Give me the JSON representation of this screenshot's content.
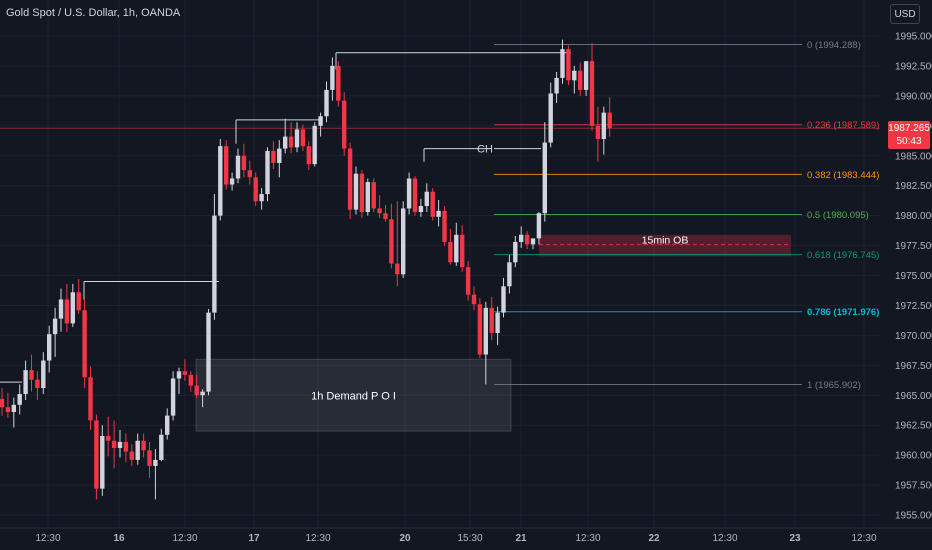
{
  "header": {
    "title": "Gold Spot / U.S. Dollar, 1h, OANDA",
    "currency_button": "USD"
  },
  "price_tag": {
    "price": "1987.265",
    "countdown": "50:43"
  },
  "colors": {
    "background": "#131722",
    "up": "#d1d4dc",
    "down": "#f23645",
    "fib_red": "#f23645",
    "fib_orange": "#ff9800",
    "fib_green": "#4caf50",
    "fib_teal": "#089981",
    "fib_blue": "#00bcd4",
    "fib_gray": "#787b86"
  },
  "chart_data": {
    "type": "candlestick",
    "y_axis": {
      "range": [
        1954,
        1997.3
      ],
      "ticks": [
        "1955.000",
        "1957.500",
        "1960.000",
        "1962.500",
        "1965.000",
        "1967.500",
        "1970.000",
        "1972.500",
        "1975.000",
        "1977.500",
        "1980.000",
        "1982.500",
        "1985.000",
        "1987.500",
        "1990.000",
        "1992.500",
        "1995.000"
      ]
    },
    "x_axis": {
      "ticks": [
        "12:30",
        "16",
        "12:30",
        "17",
        "12:30",
        "20",
        "15:30",
        "21",
        "12:30",
        "22",
        "12:30",
        "23",
        "12:30"
      ]
    },
    "candles_ohlc": [
      [
        1964.7,
        1965.6,
        1963.3,
        1964.0
      ],
      [
        1964.0,
        1965.2,
        1963.1,
        1963.6
      ],
      [
        1963.6,
        1964.8,
        1962.3,
        1964.2
      ],
      [
        1964.2,
        1965.9,
        1963.4,
        1965.1
      ],
      [
        1965.1,
        1967.9,
        1964.6,
        1967.1
      ],
      [
        1967.1,
        1968.4,
        1965.3,
        1966.3
      ],
      [
        1966.3,
        1967.0,
        1964.6,
        1965.6
      ],
      [
        1965.6,
        1968.6,
        1965.1,
        1967.9
      ],
      [
        1967.9,
        1970.8,
        1966.9,
        1970.1
      ],
      [
        1970.1,
        1972.3,
        1968.2,
        1971.4
      ],
      [
        1971.4,
        1973.9,
        1970.3,
        1973.0
      ],
      [
        1973.0,
        1974.3,
        1970.3,
        1971.0
      ],
      [
        1971.0,
        1974.3,
        1970.7,
        1973.6
      ],
      [
        1973.6,
        1974.7,
        1971.8,
        1972.1
      ],
      [
        1972.1,
        1973.0,
        1965.6,
        1966.5
      ],
      [
        1966.5,
        1967.4,
        1962.1,
        1962.9
      ],
      [
        1962.9,
        1963.4,
        1956.3,
        1957.2
      ],
      [
        1957.2,
        1962.5,
        1956.6,
        1961.6
      ],
      [
        1961.6,
        1963.2,
        1959.9,
        1961.2
      ],
      [
        1961.2,
        1962.9,
        1958.9,
        1960.6
      ],
      [
        1960.6,
        1962.1,
        1959.8,
        1961.1
      ],
      [
        1961.1,
        1961.8,
        1959.4,
        1960.3
      ],
      [
        1960.3,
        1960.9,
        1959.1,
        1959.6
      ],
      [
        1959.6,
        1961.8,
        1959.2,
        1961.2
      ],
      [
        1961.2,
        1961.8,
        1959.8,
        1960.4
      ],
      [
        1960.4,
        1961.1,
        1958.1,
        1959.1
      ],
      [
        1959.1,
        1960.5,
        1956.3,
        1959.6
      ],
      [
        1959.6,
        1962.2,
        1959.5,
        1961.7
      ],
      [
        1961.7,
        1963.9,
        1961.3,
        1963.3
      ],
      [
        1963.3,
        1967.0,
        1962.9,
        1966.4
      ],
      [
        1966.4,
        1967.3,
        1965.1,
        1967.0
      ],
      [
        1967.0,
        1968.0,
        1966.2,
        1966.7
      ],
      [
        1966.7,
        1967.0,
        1965.3,
        1965.8
      ],
      [
        1965.8,
        1966.7,
        1964.8,
        1965.0
      ],
      [
        1965.0,
        1965.5,
        1964.0,
        1965.3
      ],
      [
        1965.3,
        1972.2,
        1965.0,
        1971.9
      ],
      [
        1971.9,
        1981.8,
        1971.3,
        1980.0
      ],
      [
        1980.0,
        1986.4,
        1979.6,
        1985.8
      ],
      [
        1985.8,
        1986.3,
        1982.2,
        1982.6
      ],
      [
        1982.6,
        1983.6,
        1982.1,
        1983.1
      ],
      [
        1983.1,
        1985.6,
        1982.7,
        1985.0
      ],
      [
        1985.0,
        1986.0,
        1983.2,
        1983.8
      ],
      [
        1983.8,
        1984.6,
        1982.6,
        1983.2
      ],
      [
        1983.2,
        1983.6,
        1980.8,
        1981.2
      ],
      [
        1981.2,
        1982.3,
        1980.5,
        1981.8
      ],
      [
        1981.8,
        1985.7,
        1981.2,
        1985.4
      ],
      [
        1985.4,
        1986.2,
        1983.9,
        1984.4
      ],
      [
        1984.4,
        1986.3,
        1983.2,
        1985.6
      ],
      [
        1985.6,
        1988.1,
        1985.2,
        1986.6
      ],
      [
        1986.6,
        1987.8,
        1985.2,
        1985.7
      ],
      [
        1985.7,
        1987.8,
        1985.3,
        1987.2
      ],
      [
        1987.2,
        1987.6,
        1985.4,
        1985.8
      ],
      [
        1985.8,
        1986.2,
        1983.8,
        1984.3
      ],
      [
        1984.3,
        1987.8,
        1984.1,
        1987.5
      ],
      [
        1987.5,
        1988.6,
        1986.6,
        1988.3
      ],
      [
        1988.3,
        1991.2,
        1987.8,
        1990.5
      ],
      [
        1990.5,
        1993.2,
        1989.6,
        1992.5
      ],
      [
        1992.5,
        1992.9,
        1989.1,
        1989.6
      ],
      [
        1989.6,
        1990.3,
        1985.0,
        1985.6
      ],
      [
        1985.6,
        1986.1,
        1979.7,
        1980.5
      ],
      [
        1980.5,
        1984.1,
        1980.1,
        1983.5
      ],
      [
        1983.5,
        1983.8,
        1979.8,
        1980.3
      ],
      [
        1980.3,
        1983.1,
        1980.0,
        1982.8
      ],
      [
        1982.8,
        1983.1,
        1980.3,
        1980.6
      ],
      [
        1980.6,
        1981.7,
        1979.8,
        1980.2
      ],
      [
        1980.2,
        1980.9,
        1979.5,
        1979.7
      ],
      [
        1979.7,
        1981.0,
        1975.6,
        1976.0
      ],
      [
        1976.0,
        1981.2,
        1974.1,
        1975.1
      ],
      [
        1975.1,
        1981.2,
        1974.8,
        1980.6
      ],
      [
        1980.6,
        1983.6,
        1980.1,
        1983.1
      ],
      [
        1983.1,
        1983.3,
        1980.0,
        1980.3
      ],
      [
        1980.3,
        1981.4,
        1979.9,
        1980.8
      ],
      [
        1980.8,
        1982.7,
        1980.3,
        1982.0
      ],
      [
        1982.0,
        1982.3,
        1979.6,
        1979.9
      ],
      [
        1979.9,
        1981.3,
        1979.1,
        1980.4
      ],
      [
        1980.4,
        1980.8,
        1977.5,
        1977.8
      ],
      [
        1977.8,
        1978.9,
        1975.9,
        1976.1
      ],
      [
        1976.1,
        1979.4,
        1975.8,
        1978.4
      ],
      [
        1978.4,
        1979.2,
        1975.3,
        1975.7
      ],
      [
        1975.7,
        1976.2,
        1972.9,
        1973.4
      ],
      [
        1973.4,
        1974.1,
        1972.1,
        1972.6
      ],
      [
        1972.6,
        1973.1,
        1968.1,
        1968.4
      ],
      [
        1968.4,
        1972.8,
        1965.9,
        1972.3
      ],
      [
        1972.3,
        1973.2,
        1969.6,
        1970.2
      ],
      [
        1970.2,
        1972.4,
        1969.2,
        1971.9
      ],
      [
        1971.9,
        1974.8,
        1971.5,
        1974.1
      ],
      [
        1974.1,
        1976.7,
        1973.5,
        1976.1
      ],
      [
        1976.1,
        1978.3,
        1975.7,
        1977.8
      ],
      [
        1977.8,
        1979.1,
        1977.3,
        1978.4
      ],
      [
        1978.4,
        1978.7,
        1977.2,
        1977.6
      ],
      [
        1977.6,
        1978.0,
        1977.2,
        1978.1
      ],
      [
        1978.1,
        1980.3,
        1977.6,
        1980.2
      ],
      [
        1980.2,
        1987.8,
        1979.5,
        1986.1
      ],
      [
        1986.1,
        1991.1,
        1985.7,
        1990.2
      ],
      [
        1990.2,
        1992.0,
        1989.4,
        1991.5
      ],
      [
        1991.5,
        1994.7,
        1991.0,
        1993.9
      ],
      [
        1993.9,
        1994.2,
        1990.9,
        1991.3
      ],
      [
        1991.3,
        1992.5,
        1990.2,
        1992.1
      ],
      [
        1992.1,
        1992.8,
        1990.0,
        1990.5
      ],
      [
        1990.5,
        1992.9,
        1990.0,
        1992.9
      ],
      [
        1992.9,
        1994.4,
        1987.1,
        1987.5
      ],
      [
        1987.5,
        1989.1,
        1984.5,
        1986.4
      ],
      [
        1986.4,
        1989.1,
        1985.1,
        1988.6
      ],
      [
        1988.6,
        1989.9,
        1986.6,
        1987.3
      ]
    ],
    "fib_levels": [
      {
        "label": "0 (1994.288)",
        "value": 1994.288
      },
      {
        "label": "0.236 (1987.589)",
        "value": 1987.589
      },
      {
        "label": "0.382 (1983.444)",
        "value": 1983.444
      },
      {
        "label": "0.5 (1980.095)",
        "value": 1980.095
      },
      {
        "label": "0.618 (1976.745)",
        "value": 1976.745
      },
      {
        "label": "0.786 (1971.976)",
        "value": 1971.976
      },
      {
        "label": "1 (1965.902)",
        "value": 1965.902
      }
    ],
    "zones": [
      {
        "label": "1h Demand P O I",
        "top": 1968.0,
        "bottom": 1962.0
      },
      {
        "label": "15min OB",
        "top": 1978.4,
        "bottom": 1976.6,
        "midline": 1977.6
      }
    ],
    "structure_labels": [
      {
        "label": "CH",
        "value": 1985.6
      }
    ],
    "structure_lines": [
      {
        "value": 1966.1
      },
      {
        "value": 1974.5
      },
      {
        "value": 1988.0
      },
      {
        "value": 1993.6
      }
    ]
  }
}
